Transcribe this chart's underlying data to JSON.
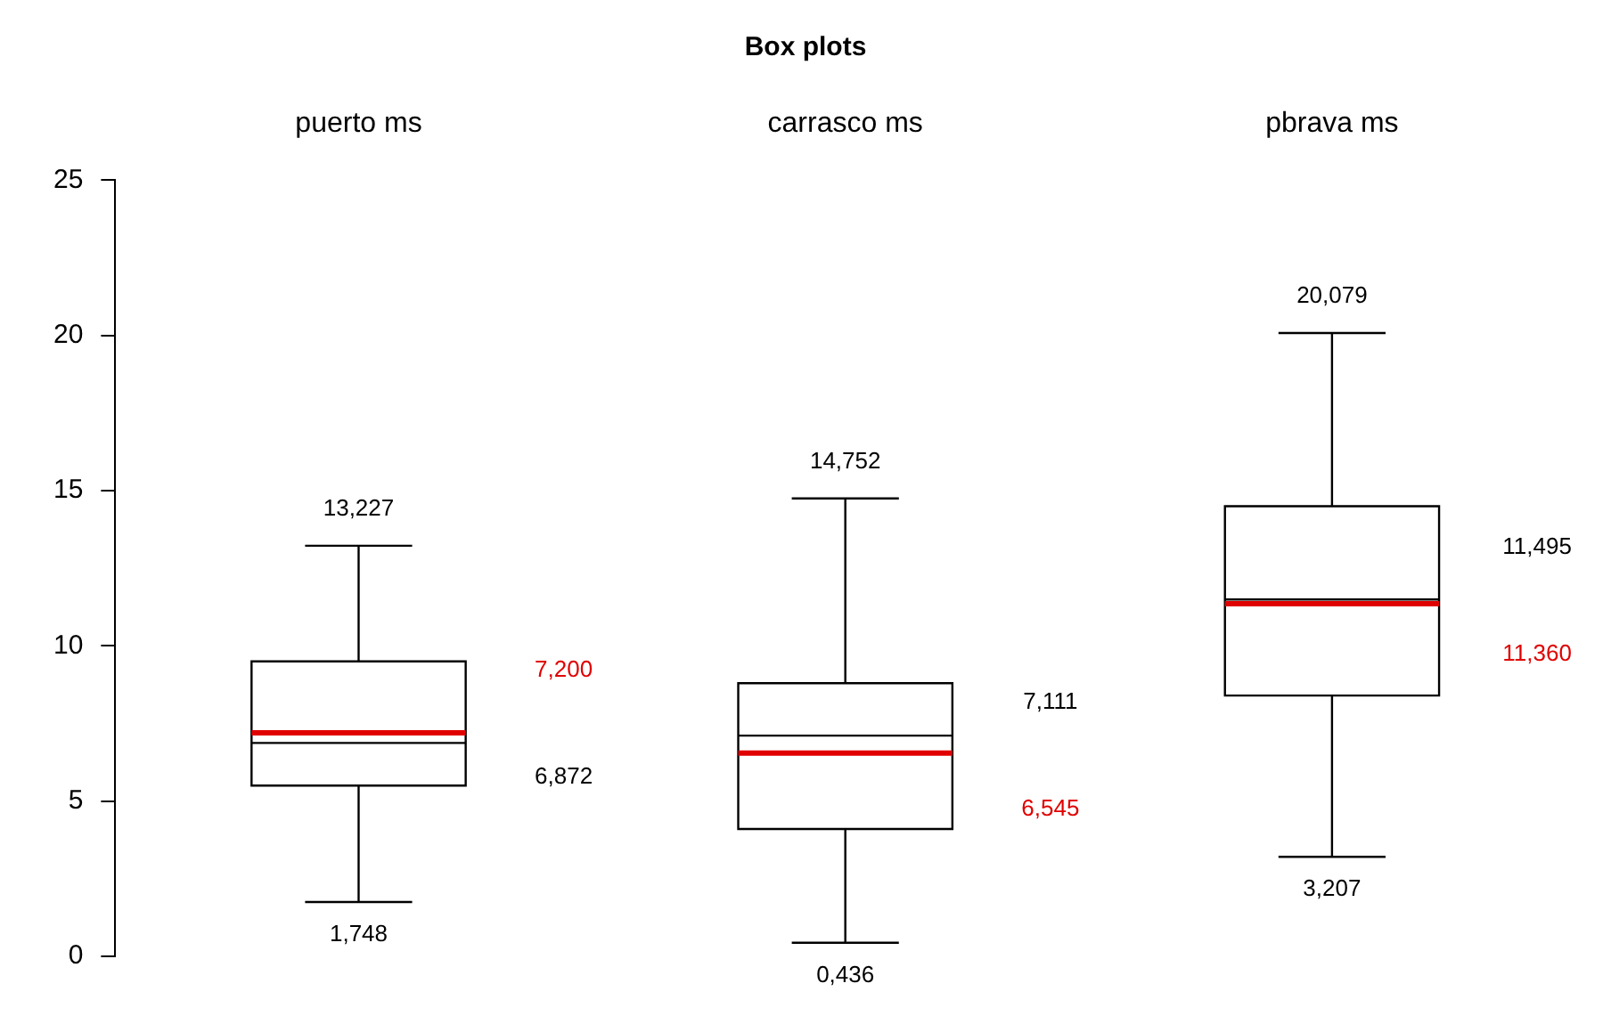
{
  "chart_data": {
    "type": "box",
    "title": "Box plots",
    "categories": [
      "puerto ms",
      "carrasco ms",
      "pbrava ms"
    ],
    "series": [
      {
        "color": "#000000",
        "boxes": [
          {
            "low": 1.748,
            "q1": 5.5,
            "median": 6.872,
            "q3": 9.5,
            "high": 13.227,
            "mean": 7.2
          },
          {
            "low": 0.436,
            "q1": 4.1,
            "median": 7.111,
            "q3": 8.8,
            "high": 14.752,
            "mean": 6.545
          },
          {
            "low": 3.207,
            "q1": 8.4,
            "median": 11.495,
            "q3": 14.5,
            "high": 20.079,
            "mean": 11.36
          }
        ]
      }
    ],
    "ylim": [
      0,
      25
    ],
    "yticks": [
      0,
      5,
      10,
      15,
      20,
      25
    ],
    "grid": false,
    "legend": false,
    "annotations": [
      {
        "text": "13,227",
        "x": "puerto ms",
        "y": 13.227
      },
      "7,200",
      "6,872",
      {
        "text": "1,748",
        "x": "puerto ms",
        "y": 1.748
      },
      {
        "text": "14,752",
        "x": "carrasco ms",
        "y": 14.752
      },
      "7,111",
      "6,545",
      {
        "text": "0,436",
        "x": "carrasco ms",
        "y": 0.436
      },
      {
        "text": "20,079",
        "x": "pbrava ms",
        "y": 20.079
      },
      "11,495",
      "11,360",
      {
        "text": "3,207",
        "x": "pbrava ms",
        "y": 3.207
      }
    ]
  }
}
